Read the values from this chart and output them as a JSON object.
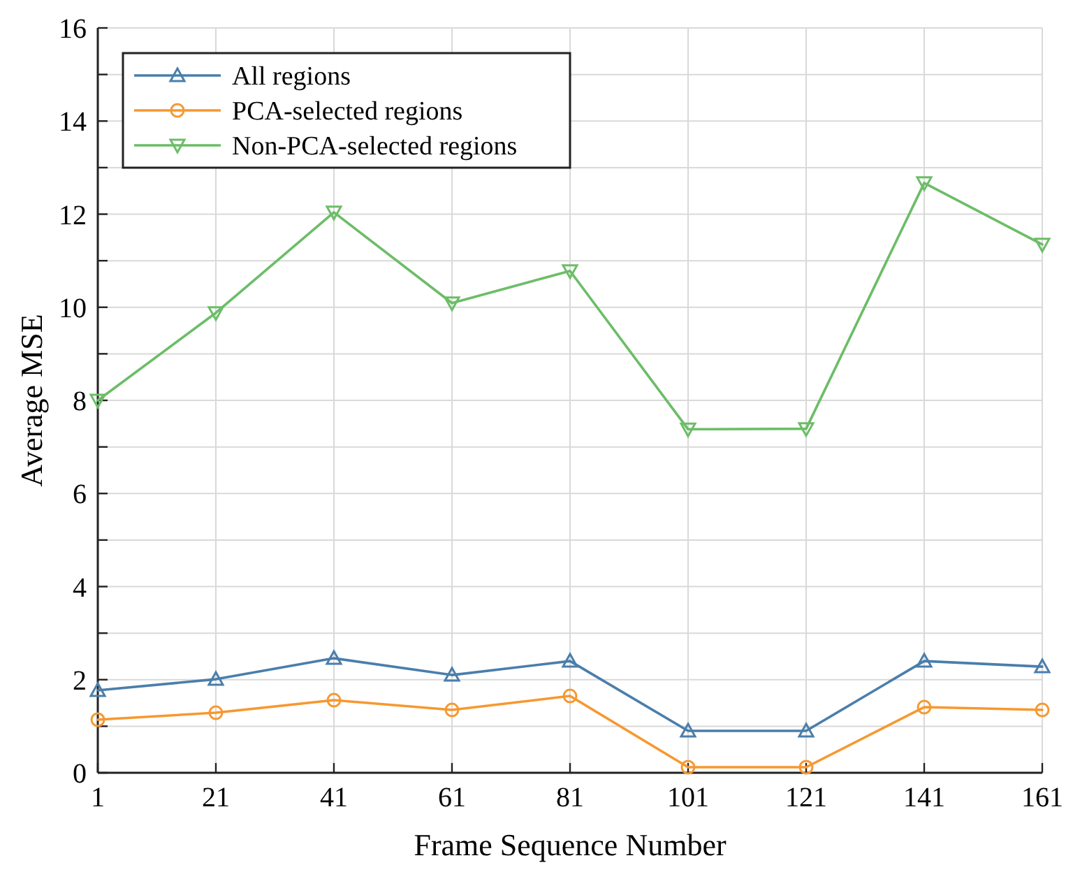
{
  "chart_data": {
    "type": "line",
    "xlabel": "Frame Sequence Number",
    "ylabel": "Average MSE",
    "x": [
      1,
      21,
      41,
      61,
      81,
      101,
      121,
      141,
      161
    ],
    "xlim": [
      1,
      161
    ],
    "xticks": [
      1,
      21,
      41,
      61,
      81,
      101,
      121,
      141,
      161
    ],
    "ylim": [
      0,
      16
    ],
    "yticks": [
      0,
      {
        "value": 1,
        "label": null
      },
      2,
      {
        "value": 3,
        "label": null
      },
      4,
      {
        "value": 5,
        "label": null
      },
      6,
      {
        "value": 7,
        "label": null
      },
      8,
      {
        "value": 9,
        "label": null
      },
      10,
      {
        "value": 11,
        "label": null
      },
      12,
      {
        "value": 13,
        "label": null
      },
      14,
      {
        "value": 15,
        "label": null
      },
      16
    ],
    "grid": true,
    "legend": "top left",
    "line_style": "solid",
    "series": [
      {
        "name": "All regions",
        "color": "#4a7eab",
        "marker": "triangle",
        "values": [
          1.77,
          2.01,
          2.46,
          2.1,
          2.4,
          0.9,
          0.9,
          2.4,
          2.28
        ]
      },
      {
        "name": "PCA-selected regions",
        "color": "#f7982f",
        "marker": "circle",
        "values": [
          1.14,
          1.29,
          1.56,
          1.35,
          1.65,
          0.12,
          0.12,
          1.41,
          1.35
        ]
      },
      {
        "name": "Non-PCA-selected regions",
        "color": "#6cbd67",
        "marker": "triangle-down",
        "values": [
          8.0,
          9.88,
          12.04,
          10.09,
          10.78,
          7.38,
          7.39,
          12.67,
          11.35
        ]
      }
    ]
  }
}
